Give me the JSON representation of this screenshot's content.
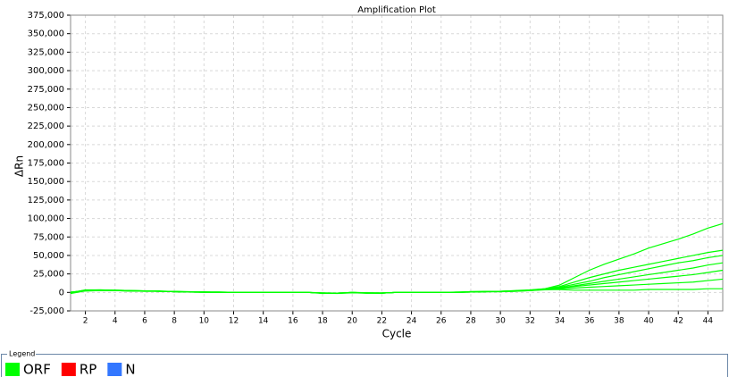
{
  "chart_data": {
    "type": "line",
    "title": "Amplification Plot",
    "x_label": "Cycle",
    "y_label": "ΔRn",
    "x": [
      1,
      2,
      3,
      4,
      5,
      6,
      7,
      8,
      9,
      10,
      11,
      12,
      13,
      14,
      15,
      16,
      17,
      18,
      19,
      20,
      21,
      22,
      23,
      24,
      25,
      26,
      27,
      28,
      29,
      30,
      31,
      32,
      33,
      34,
      35,
      36,
      37,
      38,
      39,
      40,
      41,
      42,
      43,
      44,
      45
    ],
    "xlim": [
      1,
      45
    ],
    "xticks": [
      2,
      4,
      6,
      8,
      10,
      12,
      14,
      16,
      18,
      20,
      22,
      24,
      26,
      28,
      30,
      32,
      34,
      36,
      38,
      40,
      42,
      44
    ],
    "ylim": [
      -25000,
      375000
    ],
    "yticks": [
      {
        "value": -25000,
        "label": "-25,000"
      },
      0,
      {
        "value": 25000,
        "label": "25,000"
      },
      {
        "value": 50000,
        "label": "50,000"
      },
      {
        "value": 75000,
        "label": "75,000"
      },
      {
        "value": 100000,
        "label": "100,000"
      },
      {
        "value": 125000,
        "label": "125,000"
      },
      {
        "value": 150000,
        "label": "150,000"
      },
      {
        "value": 175000,
        "label": "175,000"
      },
      {
        "value": 200000,
        "label": "200,000"
      },
      {
        "value": 225000,
        "label": "225,000"
      },
      {
        "value": 250000,
        "label": "250,000"
      },
      {
        "value": 275000,
        "label": "275,000"
      },
      {
        "value": 300000,
        "label": "300,000"
      },
      {
        "value": 325000,
        "label": "325,000"
      },
      {
        "value": 350000,
        "label": "350,000"
      },
      {
        "value": 375000,
        "label": "375,000"
      }
    ],
    "grid": true,
    "legend_title": "Legend",
    "legend": [
      {
        "name": "ORF",
        "color": "#00ff00"
      },
      {
        "name": "RP",
        "color": "#ff0000"
      },
      {
        "name": "N",
        "color": "#3377ff"
      }
    ],
    "series": [
      {
        "color": "#00ff00",
        "values": [
          0,
          3000,
          3500,
          3000,
          2500,
          2000,
          1500,
          1500,
          500,
          500,
          500,
          0,
          0,
          0,
          0,
          0,
          0,
          -1000,
          -1000,
          0,
          -1000,
          -1000,
          0,
          0,
          0,
          0,
          0,
          1000,
          1000,
          1500,
          2000,
          3000,
          5000,
          10000,
          20000,
          30000,
          38000,
          45000,
          52000,
          60000,
          66000,
          72000,
          79000,
          87000,
          93000
        ]
      },
      {
        "color": "#00ff00",
        "values": [
          -1000,
          2500,
          3000,
          3000,
          2500,
          2000,
          2000,
          1000,
          500,
          500,
          0,
          0,
          0,
          0,
          0,
          0,
          0,
          -1500,
          -1000,
          0,
          -500,
          -1000,
          0,
          0,
          0,
          0,
          500,
          1000,
          1500,
          1500,
          2500,
          3500,
          5000,
          8000,
          14000,
          20000,
          25000,
          30000,
          34000,
          38000,
          42000,
          46000,
          50000,
          54000,
          57000
        ]
      },
      {
        "color": "#00ff00",
        "values": [
          0,
          3000,
          3000,
          2500,
          2000,
          2000,
          1500,
          1000,
          500,
          0,
          0,
          0,
          0,
          0,
          0,
          0,
          0,
          -1000,
          -1500,
          -500,
          -1000,
          -1000,
          0,
          0,
          0,
          0,
          0,
          500,
          1000,
          1500,
          2000,
          3000,
          4500,
          7000,
          11000,
          15000,
          20000,
          24000,
          28000,
          32000,
          36000,
          40000,
          43000,
          47000,
          50000
        ]
      },
      {
        "color": "#00ff00",
        "values": [
          500,
          2000,
          2500,
          2500,
          2000,
          1500,
          1500,
          1000,
          500,
          500,
          0,
          0,
          0,
          0,
          0,
          0,
          0,
          -1000,
          -1000,
          -500,
          -500,
          -1000,
          0,
          0,
          0,
          0,
          0,
          500,
          1000,
          1000,
          1500,
          2500,
          4000,
          6000,
          9000,
          12000,
          15000,
          18000,
          21000,
          24000,
          27000,
          30000,
          33000,
          37000,
          40000
        ]
      },
      {
        "color": "#00ff00",
        "values": [
          -500,
          3500,
          3500,
          3000,
          2500,
          2000,
          1500,
          1500,
          1000,
          500,
          500,
          0,
          0,
          0,
          0,
          0,
          0,
          -1000,
          -1000,
          0,
          -1000,
          -500,
          0,
          0,
          0,
          0,
          0,
          1000,
          1000,
          1500,
          2000,
          3000,
          4500,
          6000,
          8000,
          10000,
          12000,
          14000,
          16000,
          18000,
          20000,
          22000,
          24000,
          27000,
          30000
        ]
      },
      {
        "color": "#00ff00",
        "values": [
          0,
          2500,
          3000,
          2500,
          2000,
          1500,
          1500,
          1000,
          500,
          500,
          0,
          0,
          0,
          0,
          0,
          0,
          0,
          -500,
          -1000,
          -500,
          -1000,
          -1000,
          0,
          0,
          0,
          0,
          0,
          500,
          1000,
          1500,
          2000,
          3000,
          4000,
          5000,
          6000,
          7000,
          8000,
          9000,
          10000,
          11000,
          12000,
          13000,
          14000,
          16000,
          18000
        ]
      },
      {
        "color": "#00ff00",
        "values": [
          -1500,
          2000,
          2500,
          2500,
          2000,
          2000,
          1500,
          1000,
          500,
          0,
          0,
          0,
          0,
          0,
          0,
          0,
          0,
          -1000,
          -1000,
          0,
          -500,
          -1000,
          0,
          0,
          0,
          0,
          0,
          500,
          1000,
          1000,
          1500,
          2500,
          3500,
          4000,
          3000,
          3000,
          3000,
          3000,
          3000,
          4000,
          4000,
          4000,
          4000,
          5000,
          5000
        ]
      }
    ]
  }
}
